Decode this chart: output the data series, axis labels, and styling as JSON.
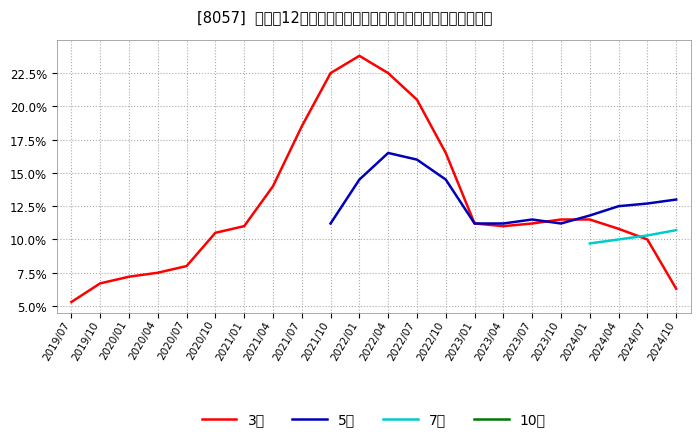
{
  "title": "[8057]  売上高12か月移動合計の対前年同期増減率の平均値の推移",
  "title_fontsize": 10.5,
  "ylim": [
    4.5,
    25.0
  ],
  "yticks": [
    5.0,
    7.5,
    10.0,
    12.5,
    15.0,
    17.5,
    20.0,
    22.5
  ],
  "background_color": "#ffffff",
  "plot_bg_color": "#ffffff",
  "legend_labels": [
    "3年",
    "5年",
    "7年",
    "10年"
  ],
  "legend_colors": [
    "#ff0000",
    "#0000bb",
    "#00cccc",
    "#007700"
  ],
  "x_labels": [
    "2019/07",
    "2019/10",
    "2020/01",
    "2020/04",
    "2020/07",
    "2020/10",
    "2021/01",
    "2021/04",
    "2021/07",
    "2021/10",
    "2022/01",
    "2022/04",
    "2022/07",
    "2022/10",
    "2023/01",
    "2023/04",
    "2023/07",
    "2023/10",
    "2024/01",
    "2024/04",
    "2024/07",
    "2024/10"
  ],
  "series_3y": [
    5.3,
    6.7,
    7.2,
    7.5,
    8.0,
    10.5,
    11.0,
    14.0,
    18.5,
    22.5,
    23.8,
    22.5,
    20.5,
    16.5,
    11.2,
    11.0,
    11.2,
    11.5,
    11.5,
    10.8,
    10.0,
    6.3
  ],
  "series_5y": [
    null,
    null,
    null,
    null,
    null,
    null,
    null,
    null,
    null,
    11.2,
    14.5,
    16.5,
    16.0,
    14.5,
    11.2,
    11.2,
    11.5,
    11.2,
    11.8,
    12.5,
    12.7,
    13.0
  ],
  "series_7y": [
    null,
    null,
    null,
    null,
    null,
    null,
    null,
    null,
    null,
    null,
    null,
    null,
    null,
    null,
    null,
    null,
    null,
    null,
    9.7,
    10.0,
    10.3,
    10.7
  ],
  "series_10y": [
    null,
    null,
    null,
    null,
    null,
    null,
    null,
    null,
    null,
    null,
    null,
    null,
    null,
    null,
    null,
    null,
    null,
    null,
    null,
    null,
    null,
    null
  ]
}
